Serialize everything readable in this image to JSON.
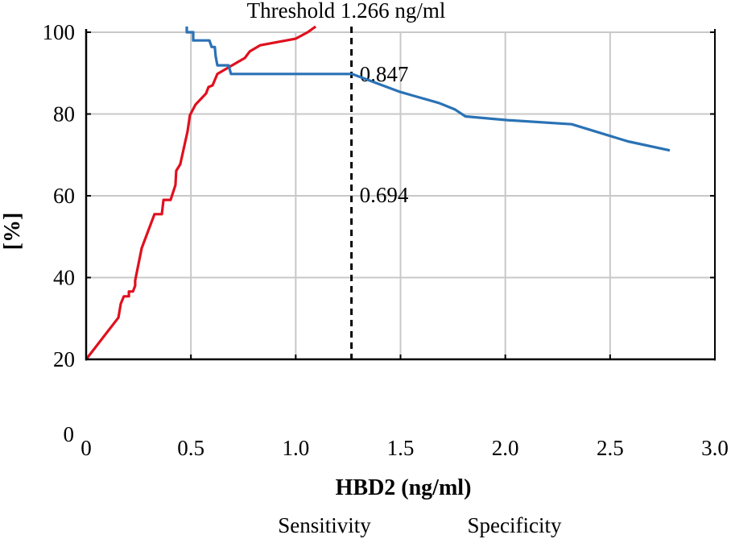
{
  "chart_data": {
    "type": "line",
    "title": "Threshold 1.266 ng/ml",
    "xlabel": "HBD2 (ng/ml)",
    "ylabel": "[%]",
    "xlim": [
      0,
      3.0
    ],
    "ylim": [
      20,
      100
    ],
    "x_ticks": [
      0,
      0.5,
      1.0,
      1.5,
      2.0,
      2.5,
      3.0
    ],
    "x_tick_labels": [
      "0",
      "0.5",
      "1.0",
      "1.5",
      "2.0",
      "2.5",
      "3.0"
    ],
    "y_ticks": [
      20,
      40,
      60,
      80,
      100
    ],
    "y_tick_labels": [
      "20",
      "40",
      "60",
      "80",
      "100"
    ],
    "y_extra_label": "0",
    "grid": true,
    "legend_placement": "bottom-center",
    "threshold": {
      "x": 1.266,
      "style": "dashed",
      "color": "#000000",
      "annotations": [
        {
          "text": "0.847",
          "y": 89.8
        },
        {
          "text": "0.694",
          "y": 60.2
        }
      ]
    },
    "series": [
      {
        "name": "Sensitivity",
        "color": "#e0101e",
        "x": [
          0,
          0.154,
          0.165,
          0.18,
          0.204,
          0.204,
          0.223,
          0.234,
          0.234,
          0.265,
          0.326,
          0.361,
          0.369,
          0.403,
          0.426,
          0.43,
          0.449,
          0.484,
          0.495,
          0.522,
          0.572,
          0.584,
          0.603,
          0.626,
          0.703,
          0.757,
          0.78,
          0.83,
          0.999,
          1.057,
          1.095
        ],
        "y": [
          20,
          30.2,
          33.6,
          35.4,
          35.4,
          36.6,
          36.6,
          38.0,
          39.3,
          47.2,
          55.5,
          55.5,
          59.0,
          59.0,
          62.6,
          66.1,
          67.7,
          75.8,
          79.7,
          82.3,
          85.0,
          86.6,
          87.0,
          89.8,
          92.1,
          93.7,
          95.3,
          96.8,
          98.4,
          100,
          101.4
        ]
      },
      {
        "name": "Specificity",
        "color": "#2a72b5",
        "x": [
          0.48,
          0.48,
          0.511,
          0.511,
          0.588,
          0.599,
          0.614,
          0.618,
          0.626,
          0.68,
          0.691,
          1.268,
          1.498,
          1.683,
          1.76,
          1.81,
          2.01,
          2.317,
          2.585,
          2.785
        ],
        "y": [
          101.4,
          100,
          100,
          98.0,
          98.0,
          96.4,
          96.4,
          94.1,
          91.9,
          91.9,
          89.8,
          89.8,
          85.4,
          82.7,
          81.1,
          79.4,
          78.5,
          77.5,
          73.3,
          71.1
        ]
      }
    ]
  }
}
